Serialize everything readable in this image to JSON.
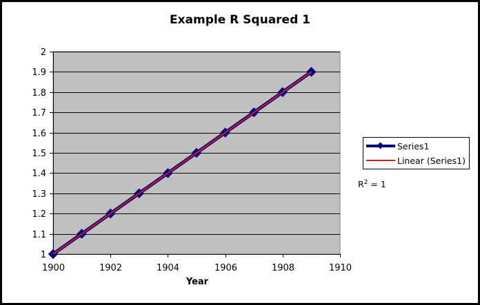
{
  "chart_data": {
    "type": "scatter",
    "title": "Example R Squared 1",
    "xlabel": "Year",
    "ylabel": "",
    "xlim": [
      1900,
      1910
    ],
    "ylim": [
      1,
      2
    ],
    "xticks": [
      "1900",
      "1902",
      "1904",
      "1906",
      "1908",
      "1910"
    ],
    "yticks": [
      "1",
      "1.1",
      "1.2",
      "1.3",
      "1.4",
      "1.5",
      "1.6",
      "1.7",
      "1.8",
      "1.9",
      "2"
    ],
    "grid": true,
    "legend_position": "right",
    "series": [
      {
        "name": "Series1",
        "color": "#000080",
        "marker": "diamond",
        "x": [
          1900,
          1901,
          1902,
          1903,
          1904,
          1905,
          1906,
          1907,
          1908,
          1909
        ],
        "y": [
          1.0,
          1.1,
          1.2,
          1.3,
          1.4,
          1.5,
          1.6,
          1.7,
          1.8,
          1.9
        ]
      }
    ],
    "trendline": {
      "name": "Linear (Series1)",
      "type": "linear",
      "color": "#d81818",
      "x_range": [
        1900,
        1909
      ],
      "r_squared_label": "R",
      "r_squared_exp": "2",
      "r_squared_value": " = 1"
    },
    "plot_background": "#c0c0c0"
  }
}
